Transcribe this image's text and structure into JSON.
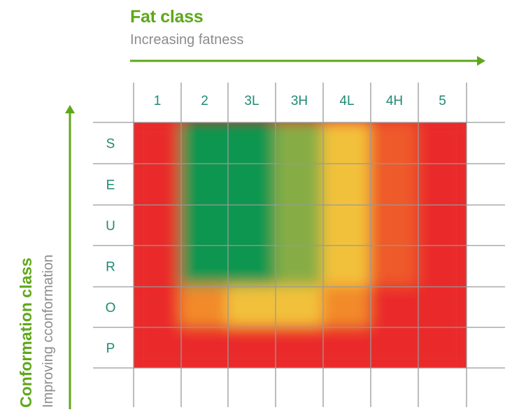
{
  "chart_data": {
    "type": "heatmap",
    "x_axis": {
      "title": "Fat class",
      "subtitle": "Increasing fatness",
      "categories": [
        "1",
        "2",
        "3L",
        "3H",
        "4L",
        "4H",
        "5"
      ]
    },
    "y_axis": {
      "title": "Conformation class",
      "subtitle": "Improving cconformation",
      "categories": [
        "S",
        "E",
        "U",
        "R",
        "O",
        "P"
      ]
    },
    "cells": [
      [
        "red",
        "green",
        "green",
        "green-yellow",
        "yellow",
        "orange-red",
        "red"
      ],
      [
        "red",
        "green",
        "green",
        "green-yellow",
        "yellow",
        "orange-red",
        "red"
      ],
      [
        "red",
        "green",
        "green",
        "green-yellow",
        "yellow",
        "orange-red",
        "red"
      ],
      [
        "red",
        "green",
        "green",
        "green-yellow",
        "yellow",
        "orange-red",
        "red"
      ],
      [
        "red",
        "orange",
        "yellow",
        "yellow",
        "orange",
        "red",
        "red"
      ],
      [
        "red",
        "red",
        "red",
        "red",
        "red",
        "red",
        "red"
      ]
    ],
    "colors": {
      "red": "#ea2c2c",
      "green": "#0e9650",
      "yellow": "#f2c13b",
      "orange": "#f28a2a",
      "label": "#1f8a73",
      "arrow": "#5fa71a",
      "grid": "#999999"
    }
  }
}
